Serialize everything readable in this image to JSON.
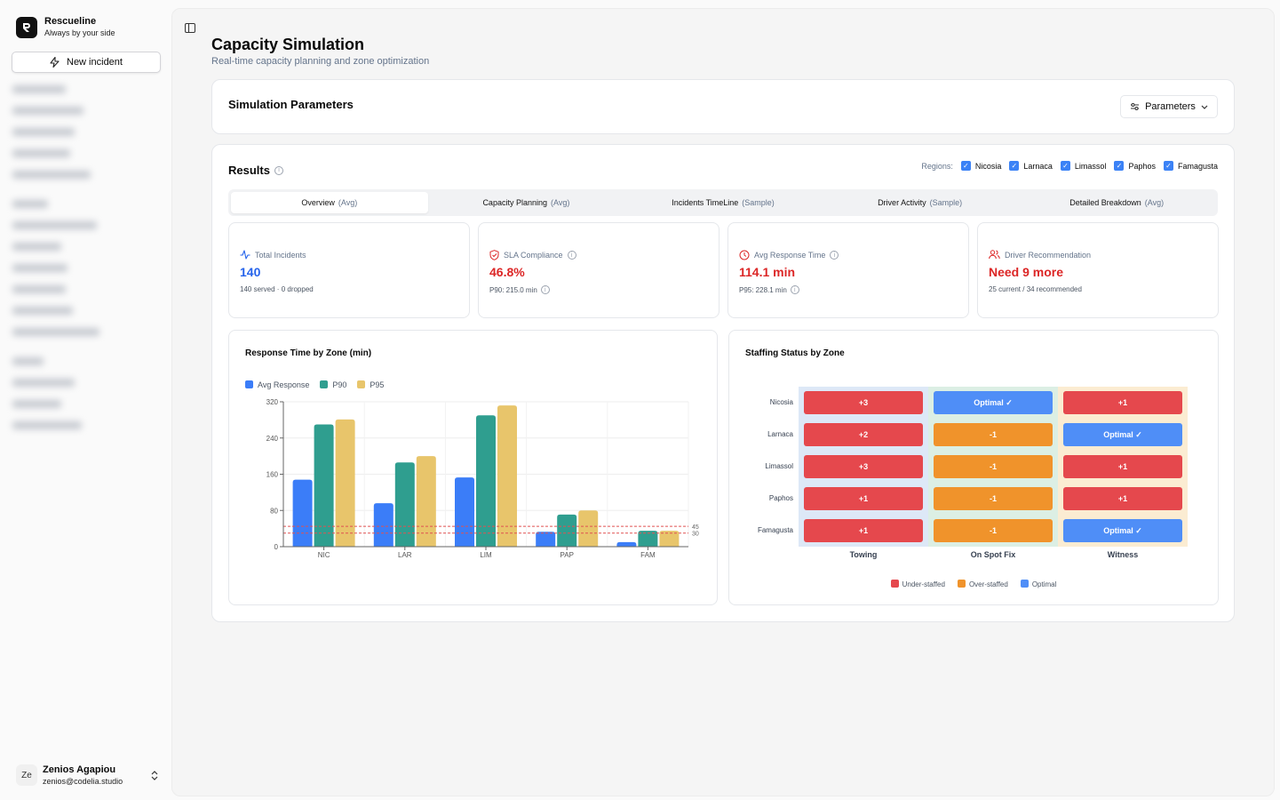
{
  "app": {
    "name": "Rescueline",
    "tagline": "Always by your side"
  },
  "sidebar": {
    "new_incident": "New incident"
  },
  "user": {
    "initials": "Ze",
    "name": "Zenios Agapiou",
    "email": "zenios@codelia.studio"
  },
  "page": {
    "title": "Capacity Simulation",
    "subtitle": "Real-time capacity planning and zone optimization"
  },
  "params": {
    "title": "Simulation Parameters",
    "button": "Parameters"
  },
  "results": {
    "title": "Results",
    "regions_label": "Regions:",
    "regions": [
      "Nicosia",
      "Larnaca",
      "Limassol",
      "Paphos",
      "Famagusta"
    ],
    "tabs": [
      {
        "label": "Overview",
        "hint": "(Avg)"
      },
      {
        "label": "Capacity Planning",
        "hint": "(Avg)"
      },
      {
        "label": "Incidents TimeLine",
        "hint": "(Sample)"
      },
      {
        "label": "Driver Activity",
        "hint": "(Sample)"
      },
      {
        "label": "Detailed Breakdown",
        "hint": "(Avg)"
      }
    ],
    "metrics": [
      {
        "label": "Total Incidents",
        "value": "140",
        "sub": "140 served · 0 dropped",
        "icon": "activity-icon"
      },
      {
        "label": "SLA Compliance",
        "value": "46.8%",
        "sub": "P90: 215.0 min",
        "icon": "shield-icon"
      },
      {
        "label": "Avg Response Time",
        "value": "114.1 min",
        "sub": "P95: 228.1 min",
        "icon": "clock-icon"
      },
      {
        "label": "Driver Recommendation",
        "value": "Need 9 more",
        "sub": "25 current / 34 recommended",
        "icon": "users-icon"
      }
    ]
  },
  "response_chart": {
    "title": "Response Time by Zone (min)"
  },
  "staffing": {
    "title": "Staffing Status by Zone",
    "zones": [
      "Nicosia",
      "Larnaca",
      "Limassol",
      "Paphos",
      "Famagusta"
    ],
    "columns": [
      "Towing",
      "On Spot Fix",
      "Witness"
    ],
    "cells": [
      [
        {
          "t": "+3",
          "s": "under"
        },
        {
          "t": "Optimal ✓",
          "s": "optimal"
        },
        {
          "t": "+1",
          "s": "under"
        }
      ],
      [
        {
          "t": "+2",
          "s": "under"
        },
        {
          "t": "-1",
          "s": "over"
        },
        {
          "t": "Optimal ✓",
          "s": "optimal"
        }
      ],
      [
        {
          "t": "+3",
          "s": "under"
        },
        {
          "t": "-1",
          "s": "over"
        },
        {
          "t": "+1",
          "s": "under"
        }
      ],
      [
        {
          "t": "+1",
          "s": "under"
        },
        {
          "t": "-1",
          "s": "over"
        },
        {
          "t": "+1",
          "s": "under"
        }
      ],
      [
        {
          "t": "+1",
          "s": "under"
        },
        {
          "t": "-1",
          "s": "over"
        },
        {
          "t": "Optimal ✓",
          "s": "optimal"
        }
      ]
    ],
    "legend": [
      "Under-staffed",
      "Over-staffed",
      "Optimal"
    ],
    "colors": {
      "under": "#e5484d",
      "over": "#f0932b",
      "optimal": "#4f8ef7"
    }
  },
  "chart_data": {
    "type": "bar",
    "title": "Response Time by Zone (min)",
    "categories": [
      "NIC",
      "LAR",
      "LIM",
      "PAP",
      "FAM"
    ],
    "series": [
      {
        "name": "Avg Response",
        "color": "#3b7df8",
        "values": [
          148,
          96,
          153,
          33,
          10
        ]
      },
      {
        "name": "P90",
        "color": "#2f9e8f",
        "values": [
          270,
          186,
          290,
          71,
          35
        ]
      },
      {
        "name": "P95",
        "color": "#e8c56b",
        "values": [
          281,
          200,
          312,
          80,
          35
        ]
      }
    ],
    "reference_lines": [
      {
        "label": "45",
        "value": 45
      },
      {
        "label": "30",
        "value": 30
      }
    ],
    "yticks": [
      0,
      80,
      160,
      240,
      320
    ],
    "ylim": [
      0,
      320
    ],
    "grid": true,
    "legend": "top-left"
  }
}
